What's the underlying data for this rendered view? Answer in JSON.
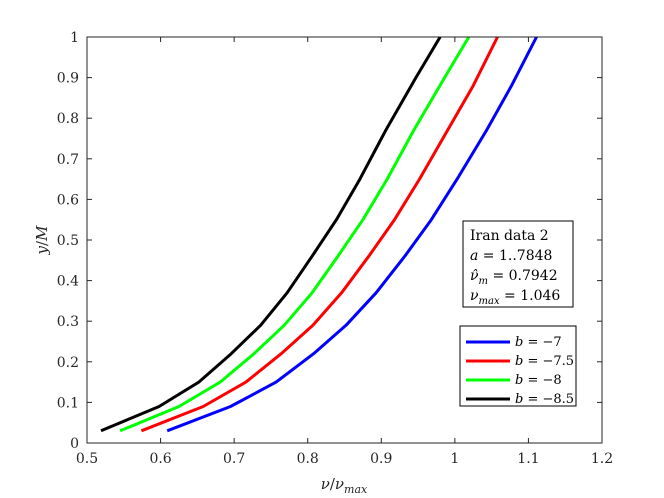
{
  "chart_data": {
    "type": "line",
    "xlabel": "ν/ν_max",
    "ylabel": "y/M",
    "xlim": [
      0.5,
      1.2
    ],
    "ylim": [
      0,
      1
    ],
    "x_ticks": [
      "0.5",
      "0.6",
      "0.7",
      "0.8",
      "0.9",
      "1",
      "1.1",
      "1.2"
    ],
    "y_ticks": [
      "0",
      "0.1",
      "0.2",
      "0.3",
      "0.4",
      "0.5",
      "0.6",
      "0.7",
      "0.8",
      "0.9",
      "1"
    ],
    "grid": false,
    "legend_position": "lower-right",
    "annotation": {
      "lines": [
        "Iran data 2",
        "a = 1..7848",
        "ν̂_m = 0.7942",
        "ν_max = 1.046"
      ]
    },
    "series": [
      {
        "name": "b = −7",
        "color": "#0000ff",
        "x": [
          0.609,
          0.695,
          0.757,
          0.808,
          0.852,
          0.893,
          0.932,
          0.968,
          1.003,
          1.043,
          1.077,
          1.111
        ],
        "y": [
          0.03,
          0.09,
          0.15,
          0.22,
          0.29,
          0.37,
          0.46,
          0.55,
          0.65,
          0.77,
          0.88,
          1.0
        ]
      },
      {
        "name": "b = −7.5",
        "color": "#ff0000",
        "x": [
          0.574,
          0.658,
          0.716,
          0.764,
          0.807,
          0.846,
          0.883,
          0.918,
          0.952,
          0.99,
          1.025,
          1.058
        ],
        "y": [
          0.03,
          0.09,
          0.15,
          0.22,
          0.29,
          0.37,
          0.46,
          0.55,
          0.65,
          0.77,
          0.88,
          1.0
        ]
      },
      {
        "name": "b = −8",
        "color": "#00ff00",
        "x": [
          0.545,
          0.625,
          0.681,
          0.727,
          0.768,
          0.806,
          0.841,
          0.875,
          0.908,
          0.944,
          0.986,
          1.019
        ],
        "y": [
          0.03,
          0.09,
          0.15,
          0.22,
          0.29,
          0.37,
          0.46,
          0.55,
          0.65,
          0.77,
          0.9,
          1.0
        ]
      },
      {
        "name": "b = −8.5",
        "color": "#000000",
        "x": [
          0.519,
          0.598,
          0.652,
          0.696,
          0.736,
          0.772,
          0.806,
          0.839,
          0.871,
          0.906,
          0.947,
          0.98
        ],
        "y": [
          0.03,
          0.09,
          0.15,
          0.22,
          0.29,
          0.37,
          0.46,
          0.55,
          0.65,
          0.77,
          0.9,
          1.0
        ]
      }
    ]
  }
}
